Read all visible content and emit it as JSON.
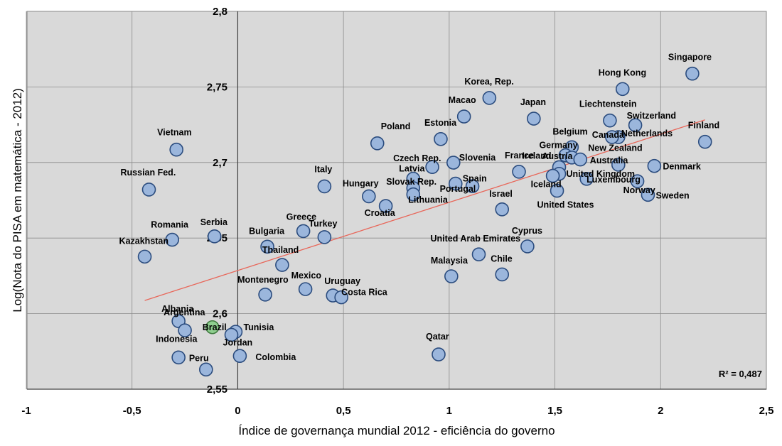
{
  "chart_data": {
    "type": "scatter",
    "xlabel": "Índice de governança mundial 2012  - eficiência do governo",
    "ylabel": "Log(Nota do PISA em matemática - 2012)",
    "xlim": [
      -1,
      2.5
    ],
    "ylim": [
      2.55,
      2.8
    ],
    "x_ticks": [
      -1,
      -0.5,
      0,
      0.5,
      1,
      1.5,
      2,
      2.5
    ],
    "x_tick_labels": [
      "-1",
      "-0,5",
      "0",
      "0,5",
      "1",
      "1,5",
      "2",
      "2,5"
    ],
    "y_ticks": [
      2.55,
      2.6,
      2.65,
      2.7,
      2.75,
      2.8
    ],
    "y_tick_labels": [
      "2,55",
      "2,6",
      "2,65",
      "2,7",
      "2,75",
      "2,8"
    ],
    "grid": true,
    "colors": {
      "marker": "#9bb6dc",
      "marker_edge": "#2b4c7e",
      "highlight": "#8fcf8f",
      "highlight_edge": "#3e7a3e",
      "trendline": "#e8675a",
      "plot_bg": "#d9d9d9",
      "grid": "#8c8c8c"
    },
    "trendline": {
      "x": [
        -0.44,
        2.21
      ],
      "y": [
        2.6087,
        2.7282
      ],
      "r2_label": "R² = 0,487"
    },
    "points": [
      {
        "label": "Singapore",
        "x": 2.15,
        "y": 2.7588,
        "lx": -34,
        "ly": -19
      },
      {
        "label": "Hong Kong",
        "x": 1.82,
        "y": 2.7486,
        "lx": -34,
        "ly": -19
      },
      {
        "label": "Korea, Rep.",
        "x": 1.19,
        "y": 2.7427,
        "lx": -35,
        "ly": -19
      },
      {
        "label": "Macao",
        "x": 1.07,
        "y": 2.7304,
        "lx": -22,
        "ly": -19
      },
      {
        "label": "Japan",
        "x": 1.4,
        "y": 2.729,
        "lx": -19,
        "ly": -19
      },
      {
        "label": "Liechtenstein",
        "x": 1.76,
        "y": 2.7278,
        "lx": -43,
        "ly": -19
      },
      {
        "label": "Switzerland",
        "x": 1.88,
        "y": 2.7247,
        "lx": -12,
        "ly": -9
      },
      {
        "label": "Estonia",
        "x": 0.96,
        "y": 2.7155,
        "lx": -23,
        "ly": -19
      },
      {
        "label": "Poland",
        "x": 0.66,
        "y": 2.7127,
        "lx": 5,
        "ly": -20
      },
      {
        "label": "Vietnam",
        "x": -0.29,
        "y": 2.7085,
        "lx": -27,
        "ly": -20
      },
      {
        "label": "Belgium",
        "x": 1.58,
        "y": 2.7101,
        "lx": -27,
        "ly": -18
      },
      {
        "label": "Canada",
        "x": 1.8,
        "y": 2.7168,
        "lx": -37,
        "ly": 1
      },
      {
        "label": "Netherlands",
        "x": 1.77,
        "y": 2.7168,
        "lx": 13,
        "ly": -1
      },
      {
        "label": "Finland",
        "x": 2.21,
        "y": 2.7137,
        "lx": -24,
        "ly": -19
      },
      {
        "label": "Germany",
        "x": 1.55,
        "y": 2.7048,
        "lx": -37,
        "ly": -10
      },
      {
        "label": "Austria",
        "x": 1.58,
        "y": 2.7033,
        "lx": -42,
        "ly": 2
      },
      {
        "label": "New Zealand",
        "x": 1.62,
        "y": 2.702,
        "lx": 11,
        "ly": -12
      },
      {
        "label": "Ireland",
        "x": 1.52,
        "y": 2.6969,
        "lx": -52,
        "ly": -12
      },
      {
        "label": "Australia",
        "x": 1.8,
        "y": 2.6985,
        "lx": -40,
        "ly": -2
      },
      {
        "label": "Denmark",
        "x": 1.97,
        "y": 2.6977,
        "lx": 12,
        "ly": 5
      },
      {
        "label": "France",
        "x": 1.33,
        "y": 2.6939,
        "lx": -20,
        "ly": -19
      },
      {
        "label": "Czech Rep.",
        "x": 0.92,
        "y": 2.697,
        "lx": -55,
        "ly": -8
      },
      {
        "label": "Slovenia",
        "x": 1.02,
        "y": 2.6999,
        "lx": 8,
        "ly": -3
      },
      {
        "label": "United Kingdom",
        "x": 1.52,
        "y": 2.6925,
        "lx": 10,
        "ly": 4
      },
      {
        "label": "Luxembourg",
        "x": 1.65,
        "y": 2.6892,
        "lx": 0,
        "ly": 5
      },
      {
        "label": "Norway",
        "x": 1.89,
        "y": 2.6876,
        "lx": -20,
        "ly": 17
      },
      {
        "label": "Iceland",
        "x": 1.49,
        "y": 2.6912,
        "lx": -31,
        "ly": 16
      },
      {
        "label": "Italy",
        "x": 0.41,
        "y": 2.6842,
        "lx": -14,
        "ly": -20
      },
      {
        "label": "Russian Fed.",
        "x": -0.42,
        "y": 2.6821,
        "lx": -40,
        "ly": -20
      },
      {
        "label": "Latvia",
        "x": 0.83,
        "y": 2.6893,
        "lx": -20,
        "ly": -10
      },
      {
        "label": "Spain",
        "x": 1.03,
        "y": 2.686,
        "lx": 10,
        "ly": -3
      },
      {
        "label": "Hungary",
        "x": 0.62,
        "y": 2.6776,
        "lx": -37,
        "ly": -14
      },
      {
        "label": "Slovak Rep.",
        "x": 0.83,
        "y": 2.683,
        "lx": -38,
        "ly": -5
      },
      {
        "label": "Portugal",
        "x": 1.11,
        "y": 2.6843,
        "lx": -46,
        "ly": 8
      },
      {
        "label": "United States",
        "x": 1.51,
        "y": 2.6813,
        "lx": -28,
        "ly": 24
      },
      {
        "label": "Sweden",
        "x": 1.94,
        "y": 2.6786,
        "lx": 11,
        "ly": 5
      },
      {
        "label": "Croatia",
        "x": 0.7,
        "y": 2.6712,
        "lx": -30,
        "ly": 14
      },
      {
        "label": "Lithuania",
        "x": 0.83,
        "y": 2.6789,
        "lx": -7,
        "ly": 12
      },
      {
        "label": "Israel",
        "x": 1.25,
        "y": 2.669,
        "lx": -18,
        "ly": -18
      },
      {
        "label": "Serbia",
        "x": -0.11,
        "y": 2.6511,
        "lx": -20,
        "ly": -16
      },
      {
        "label": "Greece",
        "x": 0.31,
        "y": 2.6546,
        "lx": -24,
        "ly": -16
      },
      {
        "label": "Turkey",
        "x": 0.41,
        "y": 2.6506,
        "lx": -22,
        "ly": -15
      },
      {
        "label": "Romania",
        "x": -0.31,
        "y": 2.6489,
        "lx": -30,
        "ly": -17
      },
      {
        "label": "Bulgaria",
        "x": 0.14,
        "y": 2.6443,
        "lx": -26,
        "ly": -18
      },
      {
        "label": "Kazakhstan",
        "x": -0.44,
        "y": 2.6377,
        "lx": -36,
        "ly": -18
      },
      {
        "label": "Thailand",
        "x": 0.21,
        "y": 2.6322,
        "lx": -28,
        "ly": -17
      },
      {
        "label": "Cyprus",
        "x": 1.37,
        "y": 2.6445,
        "lx": -22,
        "ly": -18
      },
      {
        "label": "United Arab Emirates",
        "x": 1.14,
        "y": 2.6392,
        "lx": -68,
        "ly": -18
      },
      {
        "label": "Malaysia",
        "x": 1.01,
        "y": 2.6247,
        "lx": -29,
        "ly": -18
      },
      {
        "label": "Chile",
        "x": 1.25,
        "y": 2.6259,
        "lx": -16,
        "ly": -18
      },
      {
        "label": "Mexico",
        "x": 0.32,
        "y": 2.6162,
        "lx": -20,
        "ly": -15
      },
      {
        "label": "Montenegro",
        "x": 0.13,
        "y": 2.6126,
        "lx": -39,
        "ly": -17
      },
      {
        "label": "Uruguay",
        "x": 0.45,
        "y": 2.612,
        "lx": -12,
        "ly": -16
      },
      {
        "label": "Costa Rica",
        "x": 0.49,
        "y": 2.6108,
        "lx": 0,
        "ly": -3
      },
      {
        "label": "Albania",
        "x": -0.28,
        "y": 2.595,
        "lx": -24,
        "ly": -13
      },
      {
        "label": "Argentina",
        "x": -0.25,
        "y": 2.5889,
        "lx": -30,
        "ly": -21
      },
      {
        "label": "Brazil",
        "x": -0.12,
        "y": 2.591,
        "lx": -14,
        "ly": 4,
        "highlight": true
      },
      {
        "label": "Tunisia",
        "x": -0.01,
        "y": 2.588,
        "lx": 11,
        "ly": -2
      },
      {
        "label": "Jordan",
        "x": -0.03,
        "y": 2.586,
        "lx": -12,
        "ly": 15
      },
      {
        "label": "Indonesia",
        "x": -0.28,
        "y": 2.571,
        "lx": -32,
        "ly": -22
      },
      {
        "label": "Peru",
        "x": -0.15,
        "y": 2.563,
        "lx": -24,
        "ly": -12
      },
      {
        "label": "Colombia",
        "x": 0.01,
        "y": 2.572,
        "lx": 22,
        "ly": 6
      },
      {
        "label": "Qatar",
        "x": 0.95,
        "y": 2.573,
        "lx": -18,
        "ly": -21
      }
    ]
  }
}
